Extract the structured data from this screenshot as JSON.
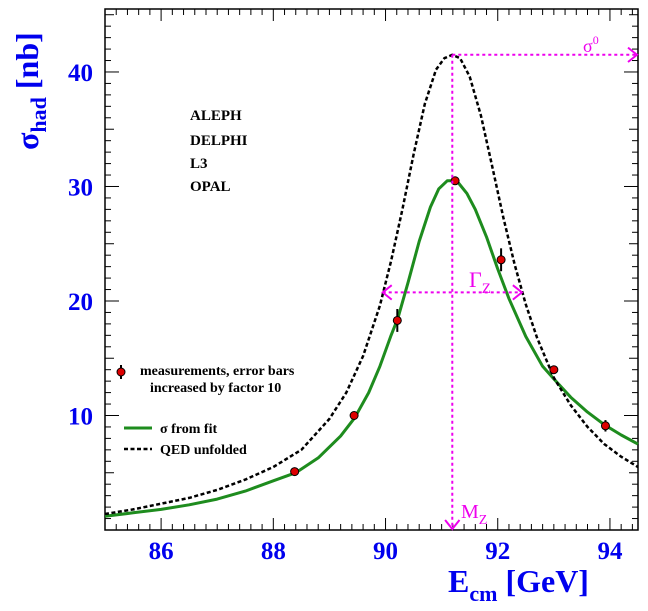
{
  "chart_data": {
    "type": "line",
    "xlabel": "E",
    "xlabel_sub": "cm",
    "xlabel_unit": "[GeV]",
    "ylabel": "σ",
    "ylabel_sub": "had",
    "ylabel_unit": "[nb]",
    "xlim": [
      85,
      94.5
    ],
    "ylim": [
      0,
      45.5
    ],
    "x_ticks": [
      "86",
      "88",
      "90",
      "92",
      "94"
    ],
    "x_tick_values": [
      86,
      88,
      90,
      92,
      94
    ],
    "y_ticks": [
      "10",
      "20",
      "30",
      "40"
    ],
    "y_tick_values": [
      10,
      20,
      30,
      40
    ],
    "grid": false,
    "experiments": [
      "ALEPH",
      "DELPHI",
      "L3",
      "OPAL"
    ],
    "legend": {
      "position": "bottom-left",
      "entries": [
        {
          "line1": "measurements, error bars",
          "line2": "increased by factor 10",
          "style": "marker"
        },
        {
          "label": "σ from fit",
          "style": "solid",
          "color": "#1e8c1e"
        },
        {
          "label": "QED unfolded",
          "style": "dashed",
          "color": "#000000"
        }
      ]
    },
    "series": [
      {
        "name": "σ from fit",
        "color": "#1e8c1e",
        "style": "solid",
        "x": [
          85.0,
          85.5,
          86.0,
          86.5,
          87.0,
          87.5,
          88.0,
          88.4,
          88.8,
          89.2,
          89.45,
          89.7,
          89.9,
          90.1,
          90.22,
          90.4,
          90.6,
          90.8,
          90.95,
          91.1,
          91.2,
          91.3,
          91.45,
          91.6,
          91.8,
          92.0,
          92.2,
          92.5,
          92.8,
          93.0,
          93.3,
          93.6,
          93.9,
          94.2,
          94.5
        ],
        "y": [
          1.2,
          1.5,
          1.8,
          2.2,
          2.7,
          3.4,
          4.3,
          5.0,
          6.3,
          8.2,
          9.8,
          12.0,
          14.3,
          17.0,
          18.5,
          21.6,
          25.2,
          28.2,
          29.8,
          30.5,
          30.5,
          30.3,
          29.4,
          28.0,
          25.6,
          22.8,
          20.2,
          16.9,
          14.3,
          13.2,
          11.6,
          10.3,
          9.2,
          8.3,
          7.5
        ]
      },
      {
        "name": "QED unfolded",
        "color": "#000000",
        "style": "dashed",
        "x": [
          85.0,
          85.5,
          86.0,
          86.5,
          87.0,
          87.5,
          88.0,
          88.5,
          89.0,
          89.3,
          89.6,
          89.9,
          90.1,
          90.3,
          90.5,
          90.7,
          90.9,
          91.05,
          91.19,
          91.33,
          91.5,
          91.7,
          91.9,
          92.1,
          92.3,
          92.5,
          92.7,
          93.0,
          93.3,
          93.6,
          93.9,
          94.2,
          94.5
        ],
        "y": [
          1.4,
          1.8,
          2.3,
          2.8,
          3.5,
          4.4,
          5.5,
          7.0,
          9.7,
          12.0,
          15.2,
          19.6,
          23.5,
          28.0,
          32.8,
          37.2,
          40.2,
          41.2,
          41.5,
          41.2,
          39.6,
          36.2,
          31.8,
          27.3,
          23.2,
          19.7,
          16.8,
          13.3,
          10.9,
          9.0,
          7.5,
          6.4,
          5.5
        ]
      }
    ],
    "measurements": {
      "name": "measurements",
      "x": [
        88.38,
        89.44,
        90.21,
        91.24,
        92.06,
        93.0,
        93.92
      ],
      "y": [
        5.1,
        10.0,
        18.3,
        30.5,
        23.6,
        14.0,
        9.1
      ],
      "err": [
        0.3,
        0.3,
        1.0,
        0.3,
        1.0,
        0.3,
        0.5
      ]
    },
    "annotations": {
      "sigma0": {
        "label": "σ",
        "sup": "0",
        "y": 41.5,
        "x_from": 91.19,
        "x_to": 94.5
      },
      "gamma_z": {
        "label": "Γ",
        "sub": "Z",
        "y": 20.75,
        "x_from": 89.95,
        "x_to": 92.43
      },
      "m_z": {
        "label": "M",
        "sub": "Z",
        "x": 91.19,
        "y_from": 41.5,
        "y_to": 0
      }
    }
  }
}
